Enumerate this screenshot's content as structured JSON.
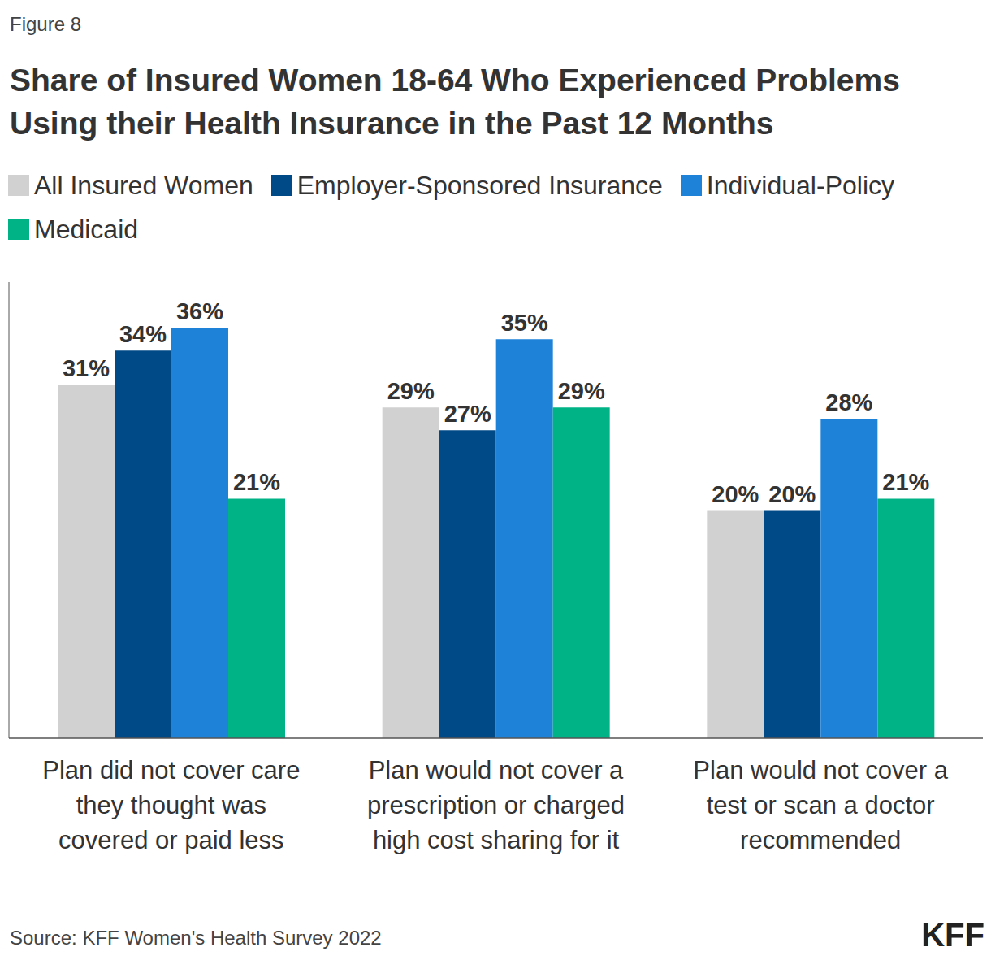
{
  "figure_label": "Figure 8",
  "source": "Source: KFF Women's Health Survey 2022",
  "logo": "KFF",
  "chart_data": {
    "type": "bar",
    "title": "Share of Insured Women 18-64 Who Experienced Problems\nUsing their Health Insurance in the Past 12 Months",
    "categories": [
      "Plan did not cover care\nthey thought was\ncovered or paid less",
      "Plan would not cover a\nprescription or charged\nhigh cost sharing for it",
      "Plan would not cover a\ntest or scan a doctor\nrecommended"
    ],
    "series": [
      {
        "name": "All Insured Women",
        "color": "#d1d1d1",
        "values": [
          31,
          29,
          20
        ],
        "value_labels": [
          "31%",
          "29%",
          "20%"
        ]
      },
      {
        "name": "Employer-Sponsored Insurance",
        "color": "#004a87",
        "values": [
          34,
          27,
          20
        ],
        "value_labels": [
          "34%",
          "27%",
          "20%"
        ]
      },
      {
        "name": "Individual-Policy",
        "color": "#1e83d8",
        "values": [
          36,
          35,
          28
        ],
        "value_labels": [
          "36%",
          "35%",
          "28%"
        ]
      },
      {
        "name": "Medicaid",
        "color": "#00b386",
        "values": [
          21,
          29,
          21
        ],
        "value_labels": [
          "21%",
          "29%",
          "21%"
        ]
      }
    ],
    "ylim": [
      0,
      40
    ],
    "tick_labels": false,
    "data_labels": true,
    "legend": "top"
  }
}
